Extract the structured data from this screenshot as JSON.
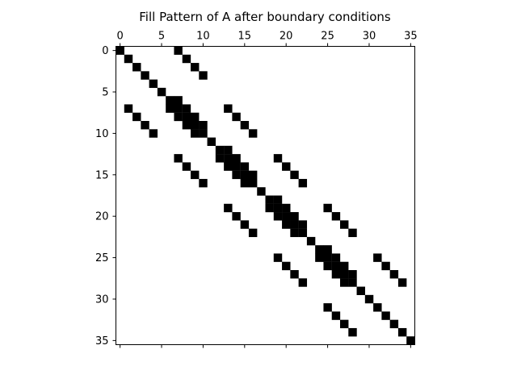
{
  "chart_data": {
    "type": "heatmap",
    "title": "Fill Pattern of A after boundary conditions",
    "xlabel": "",
    "ylabel": "",
    "matrix_size": 36,
    "xlim": [
      -0.5,
      35.5
    ],
    "ylim": [
      35.5,
      -0.5
    ],
    "x_axis_position": "top",
    "y_axis_inverted": true,
    "grid": false,
    "marker": "square",
    "marker_color": "#000000",
    "x_ticks": [
      0,
      5,
      10,
      15,
      20,
      25,
      30,
      35
    ],
    "y_ticks": [
      0,
      5,
      10,
      15,
      20,
      25,
      30,
      35
    ],
    "nonzeros": [
      [
        0,
        0
      ],
      [
        0,
        7
      ],
      [
        1,
        1
      ],
      [
        1,
        8
      ],
      [
        2,
        2
      ],
      [
        2,
        9
      ],
      [
        3,
        3
      ],
      [
        3,
        10
      ],
      [
        4,
        4
      ],
      [
        5,
        5
      ],
      [
        6,
        6
      ],
      [
        6,
        7
      ],
      [
        7,
        1
      ],
      [
        7,
        6
      ],
      [
        7,
        7
      ],
      [
        7,
        8
      ],
      [
        7,
        13
      ],
      [
        8,
        2
      ],
      [
        8,
        7
      ],
      [
        8,
        8
      ],
      [
        8,
        9
      ],
      [
        8,
        14
      ],
      [
        9,
        3
      ],
      [
        9,
        8
      ],
      [
        9,
        9
      ],
      [
        9,
        10
      ],
      [
        9,
        15
      ],
      [
        10,
        4
      ],
      [
        10,
        9
      ],
      [
        10,
        10
      ],
      [
        10,
        16
      ],
      [
        11,
        11
      ],
      [
        12,
        12
      ],
      [
        12,
        13
      ],
      [
        13,
        7
      ],
      [
        13,
        12
      ],
      [
        13,
        13
      ],
      [
        13,
        14
      ],
      [
        13,
        19
      ],
      [
        14,
        8
      ],
      [
        14,
        13
      ],
      [
        14,
        14
      ],
      [
        14,
        15
      ],
      [
        14,
        20
      ],
      [
        15,
        9
      ],
      [
        15,
        14
      ],
      [
        15,
        15
      ],
      [
        15,
        16
      ],
      [
        15,
        21
      ],
      [
        16,
        10
      ],
      [
        16,
        15
      ],
      [
        16,
        16
      ],
      [
        16,
        22
      ],
      [
        17,
        17
      ],
      [
        18,
        18
      ],
      [
        18,
        19
      ],
      [
        19,
        13
      ],
      [
        19,
        18
      ],
      [
        19,
        19
      ],
      [
        19,
        20
      ],
      [
        19,
        25
      ],
      [
        20,
        14
      ],
      [
        20,
        19
      ],
      [
        20,
        20
      ],
      [
        20,
        21
      ],
      [
        20,
        26
      ],
      [
        21,
        15
      ],
      [
        21,
        20
      ],
      [
        21,
        21
      ],
      [
        21,
        22
      ],
      [
        21,
        27
      ],
      [
        22,
        16
      ],
      [
        22,
        21
      ],
      [
        22,
        22
      ],
      [
        22,
        28
      ],
      [
        23,
        23
      ],
      [
        24,
        24
      ],
      [
        24,
        25
      ],
      [
        25,
        19
      ],
      [
        25,
        24
      ],
      [
        25,
        25
      ],
      [
        25,
        26
      ],
      [
        25,
        31
      ],
      [
        26,
        20
      ],
      [
        26,
        25
      ],
      [
        26,
        26
      ],
      [
        26,
        27
      ],
      [
        26,
        32
      ],
      [
        27,
        21
      ],
      [
        27,
        26
      ],
      [
        27,
        27
      ],
      [
        27,
        28
      ],
      [
        27,
        33
      ],
      [
        28,
        22
      ],
      [
        28,
        27
      ],
      [
        28,
        28
      ],
      [
        28,
        34
      ],
      [
        29,
        29
      ],
      [
        30,
        30
      ],
      [
        31,
        25
      ],
      [
        31,
        31
      ],
      [
        32,
        26
      ],
      [
        32,
        32
      ],
      [
        33,
        27
      ],
      [
        33,
        33
      ],
      [
        34,
        28
      ],
      [
        34,
        34
      ],
      [
        35,
        35
      ]
    ]
  }
}
